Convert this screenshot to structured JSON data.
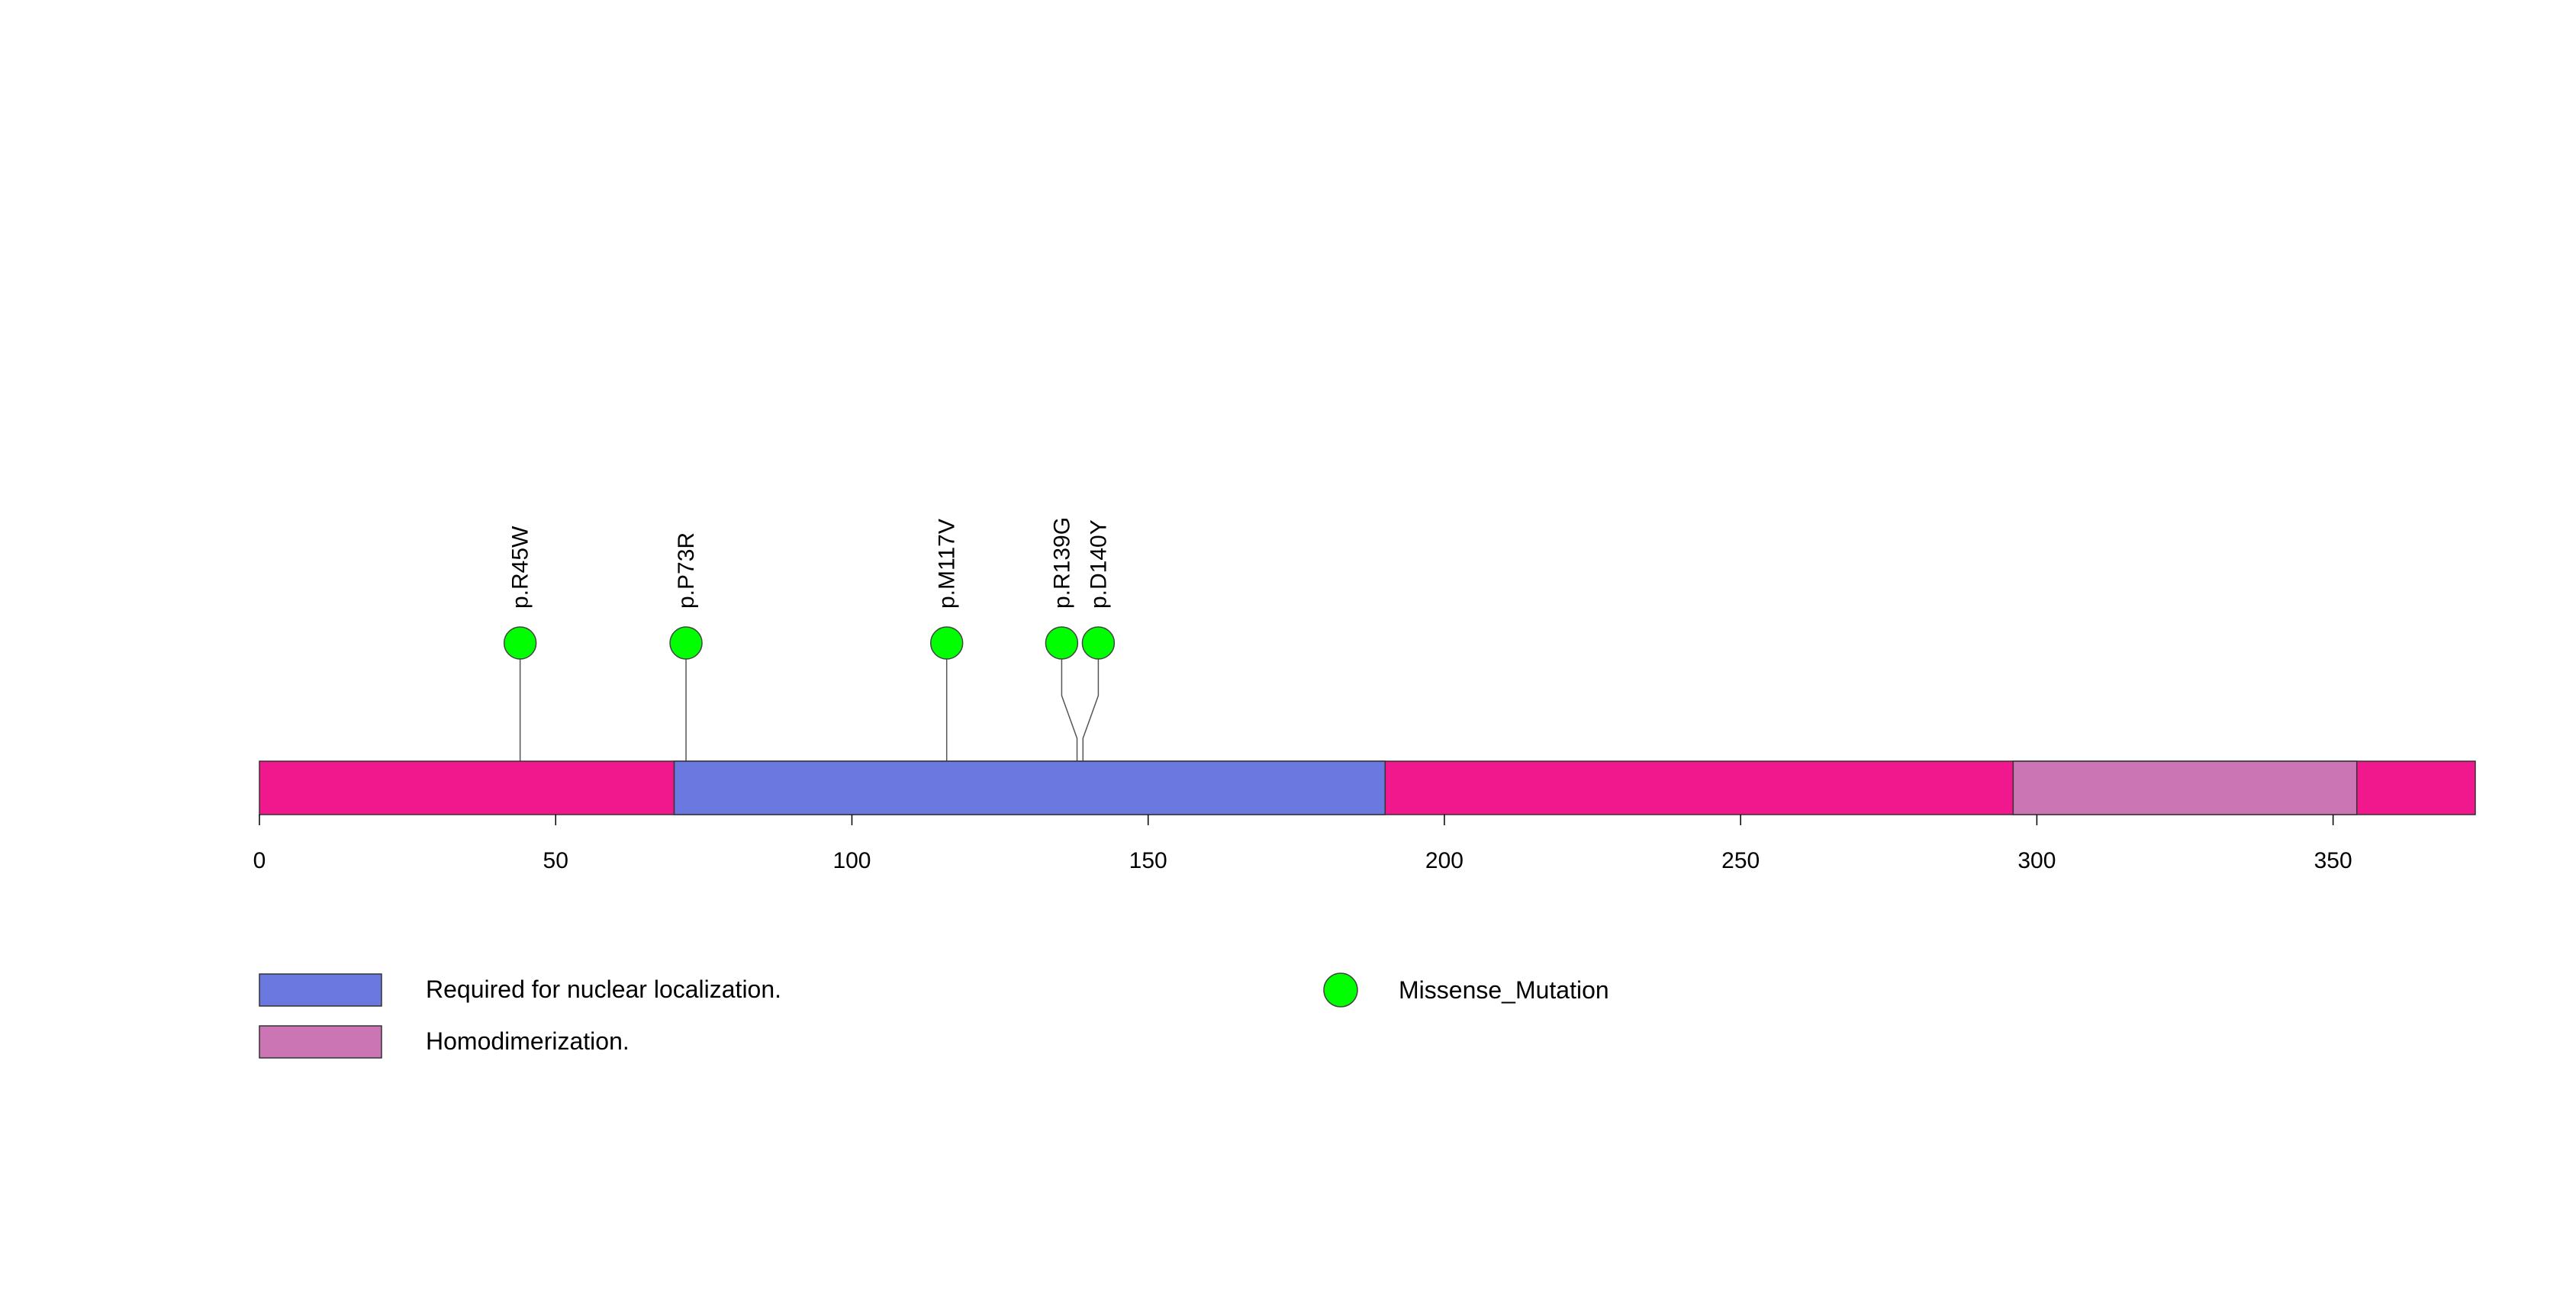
{
  "protein": {
    "length": 374,
    "base_color": "#F0188C",
    "domains": [
      {
        "name": "Required for nuclear localization.",
        "start": 70,
        "end": 190,
        "color": "#6B78E0"
      },
      {
        "name": "Homodimerization.",
        "start": 296,
        "end": 354,
        "color": "#CC75B4"
      }
    ]
  },
  "axis": {
    "ticks": [
      0,
      50,
      100,
      150,
      200,
      250,
      300,
      350
    ]
  },
  "mutations": [
    {
      "label": "p.R45W",
      "position": 44,
      "type": "Missense_Mutation"
    },
    {
      "label": "p.P73R",
      "position": 72,
      "type": "Missense_Mutation"
    },
    {
      "label": "p.M117V",
      "position": 116,
      "type": "Missense_Mutation"
    },
    {
      "label": "p.R139G",
      "position": 138,
      "type": "Missense_Mutation"
    },
    {
      "label": "p.D140Y",
      "position": 139,
      "type": "Missense_Mutation"
    }
  ],
  "legend": {
    "domains": [
      {
        "label": "Required for nuclear localization.",
        "color": "#6B78E0"
      },
      {
        "label": "Homodimerization.",
        "color": "#CC75B4"
      }
    ],
    "mutation_types": [
      {
        "label": "Missense_Mutation",
        "color": "#00FF00"
      }
    ]
  }
}
